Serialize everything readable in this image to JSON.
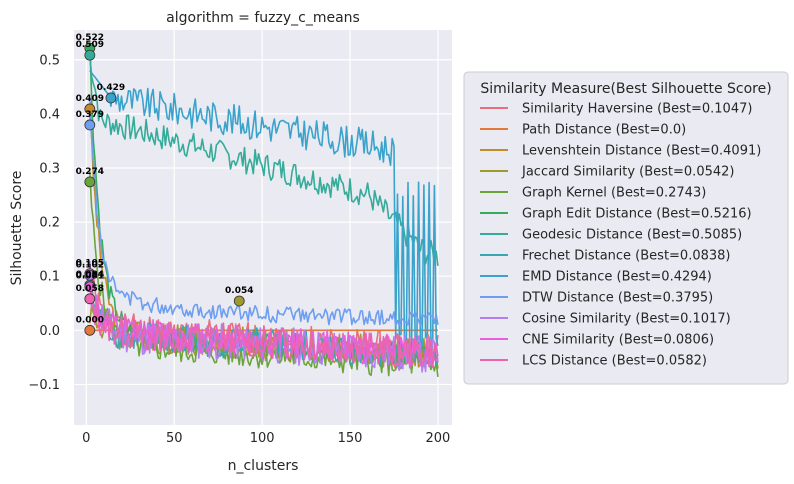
{
  "chart_data": {
    "type": "line",
    "title": "algorithm = fuzzy_c_means",
    "xlabel": "n_clusters",
    "ylabel": "Silhouette Score",
    "xlim": [
      -7,
      208
    ],
    "ylim": [
      -0.175,
      0.555
    ],
    "xticks": [
      0,
      50,
      100,
      150,
      200
    ],
    "yticks": [
      -0.1,
      0.0,
      0.1,
      0.2,
      0.3,
      0.4,
      0.5
    ],
    "ytick_labels": [
      "−0.1",
      "0.0",
      "0.1",
      "0.2",
      "0.3",
      "0.4",
      "0.5"
    ],
    "grid": true,
    "legend_title": "Similarity Measure(Best Silhouette Score)",
    "legend_position": "right",
    "series": [
      {
        "name": "Similarity Haversine (Best=0.1047)",
        "color": "#e8707e",
        "best": 0.1047,
        "best_x": 2,
        "start": 0.1,
        "level": -0.005,
        "decay": 0.05,
        "noise": 0.035,
        "seed": 1
      },
      {
        "name": "Path Distance (Best=0.0)",
        "color": "#e2783a",
        "best": 0.0,
        "best_x": 2,
        "start": 0.0,
        "level": 0.0,
        "decay": 0.0,
        "noise": 0.0,
        "seed": 2
      },
      {
        "name": "Levenshtein Distance (Best=0.4091)",
        "color": "#c38a2e",
        "best": 0.4091,
        "best_x": 2,
        "start": 0.409,
        "level": -0.015,
        "decay": 0.015,
        "noise": 0.02,
        "seed": 3
      },
      {
        "name": "Jaccard Similarity (Best=0.0542)",
        "color": "#9d9a2e",
        "best": 0.0542,
        "best_x": 87,
        "start": 0.04,
        "level": -0.01,
        "decay": 0.03,
        "noise": 0.03,
        "seed": 4
      },
      {
        "name": "Graph Kernel (Best=0.2743)",
        "color": "#6ba53a",
        "best": 0.2743,
        "best_x": 2,
        "start": 0.274,
        "level": -0.03,
        "decay": 0.03,
        "noise": 0.025,
        "seed": 5
      },
      {
        "name": "Graph Edit Distance (Best=0.5216)",
        "color": "#35ac5d",
        "best": 0.5216,
        "best_x": 2,
        "start": 0.5216,
        "level": -0.01,
        "decay": 0.02,
        "noise": 0.02,
        "seed": 6
      },
      {
        "name": "Geodesic Distance (Best=0.5085)",
        "color": "#35ab9a",
        "best": 0.5085,
        "best_x": 2,
        "start": 0.5085,
        "level": 0.0,
        "decay": 0.0,
        "noise": 0.0,
        "seed": 7
      },
      {
        "name": "Frechet Distance (Best=0.0838)",
        "color": "#37a8b0",
        "best": 0.0838,
        "best_x": 2,
        "start": 0.08,
        "level": -0.01,
        "decay": 0.03,
        "noise": 0.03,
        "seed": 8
      },
      {
        "name": "EMD Distance (Best=0.4294)",
        "color": "#3aa3cc",
        "best": 0.4294,
        "best_x": 14,
        "start": 0.43,
        "level": 0.0,
        "decay": 0.0,
        "noise": 0.0,
        "seed": 9
      },
      {
        "name": "DTW Distance (Best=0.3795)",
        "color": "#6e9ef0",
        "best": 0.3795,
        "best_x": 2,
        "start": 0.3795,
        "level": 0.02,
        "decay": 0.03,
        "noise": 0.015,
        "seed": 10
      },
      {
        "name": "Cosine Similarity (Best=0.1017)",
        "color": "#b57ef0",
        "best": 0.1017,
        "best_x": 2,
        "start": 0.1,
        "level": -0.01,
        "decay": 0.04,
        "noise": 0.035,
        "seed": 11
      },
      {
        "name": "CNE Similarity (Best=0.0806)",
        "color": "#e85fdd",
        "best": 0.0806,
        "best_x": 2,
        "start": 0.08,
        "level": -0.005,
        "decay": 0.03,
        "noise": 0.03,
        "seed": 12
      },
      {
        "name": "LCS Distance (Best=0.0582)",
        "color": "#ec63b0",
        "best": 0.0582,
        "best_x": 2,
        "start": 0.058,
        "level": -0.005,
        "decay": 0.02,
        "noise": 0.03,
        "seed": 13
      }
    ],
    "annotations": [
      {
        "x": 2,
        "y": 0.5216,
        "text": "0.522"
      },
      {
        "x": 2,
        "y": 0.5085,
        "text": "0.509"
      },
      {
        "x": 14,
        "y": 0.4294,
        "text": "0.429"
      },
      {
        "x": 2,
        "y": 0.4091,
        "text": "0.409"
      },
      {
        "x": 2,
        "y": 0.3795,
        "text": "0.379"
      },
      {
        "x": 2,
        "y": 0.2743,
        "text": "0.274"
      },
      {
        "x": 2,
        "y": 0.1047,
        "text": "0.105"
      },
      {
        "x": 2,
        "y": 0.1017,
        "text": "0.102"
      },
      {
        "x": 2,
        "y": 0.0838,
        "text": "0.084"
      },
      {
        "x": 2,
        "y": 0.0806,
        "text": "0.081"
      },
      {
        "x": 2,
        "y": 0.0582,
        "text": "0.058"
      },
      {
        "x": 87,
        "y": 0.0542,
        "text": "0.054"
      },
      {
        "x": 2,
        "y": 0.0,
        "text": "0.000"
      }
    ]
  }
}
